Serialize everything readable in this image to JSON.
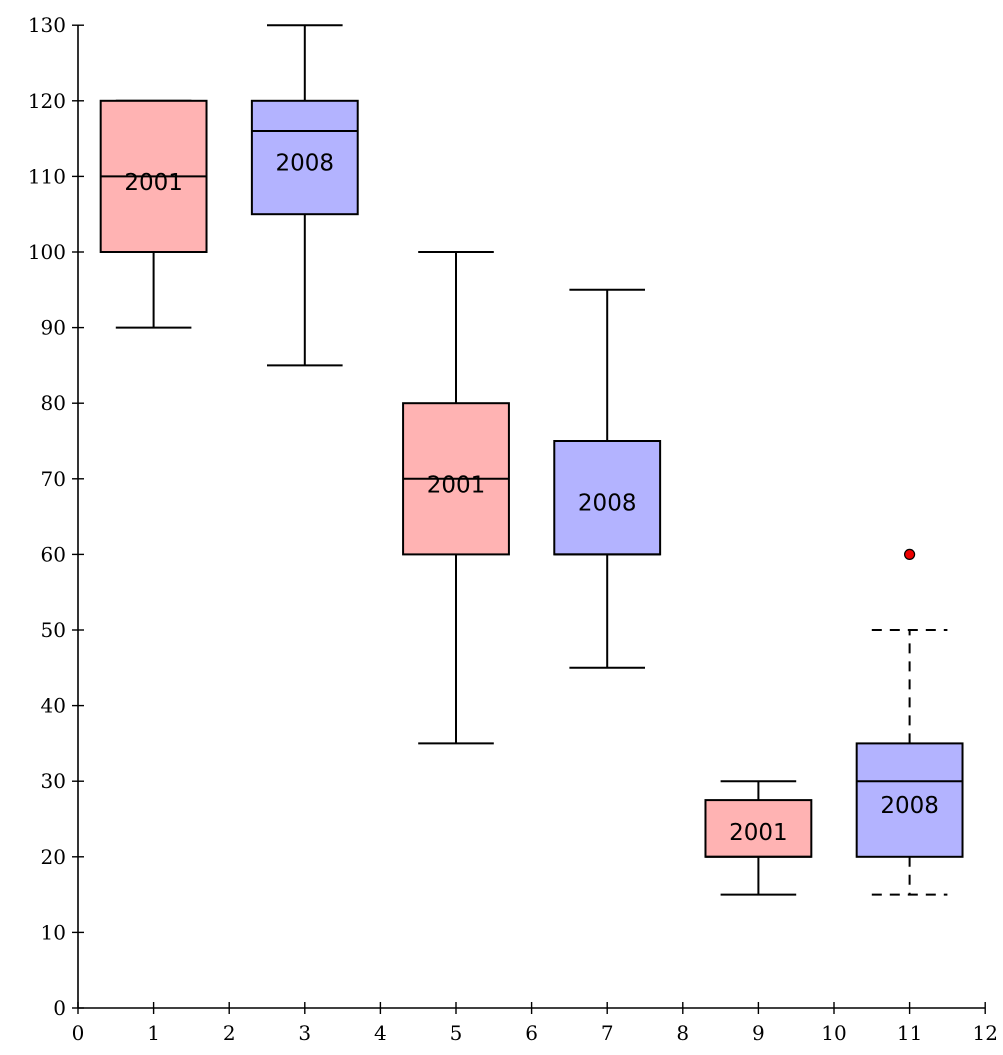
{
  "chart_data": {
    "type": "boxplot",
    "xlim": [
      0,
      12
    ],
    "ylim": [
      0,
      130
    ],
    "x_ticks": [
      "0",
      "1",
      "2",
      "3",
      "4",
      "5",
      "6",
      "7",
      "8",
      "9",
      "10",
      "11",
      "12"
    ],
    "y_ticks": [
      "0",
      "10",
      "20",
      "30",
      "40",
      "50",
      "60",
      "70",
      "80",
      "90",
      "100",
      "110",
      "120",
      "130"
    ],
    "grid": false,
    "colors": {
      "2001": "#ffb3b3",
      "2008": "#b3b3ff",
      "outlier": "#ee0000",
      "stroke": "#000000"
    },
    "boxes": [
      {
        "x": 1,
        "label": "2001",
        "lower_whisker": 90,
        "q1": 100,
        "median": 110,
        "q3": 120,
        "upper_whisker": 120,
        "whisker_style": "solid",
        "outliers": []
      },
      {
        "x": 3,
        "label": "2008",
        "lower_whisker": 85,
        "q1": 105,
        "median": 116,
        "q3": 120,
        "upper_whisker": 130,
        "whisker_style": "solid",
        "outliers": []
      },
      {
        "x": 5,
        "label": "2001",
        "lower_whisker": 35,
        "q1": 60,
        "median": 70,
        "q3": 80,
        "upper_whisker": 100,
        "whisker_style": "solid",
        "outliers": []
      },
      {
        "x": 7,
        "label": "2008",
        "lower_whisker": 45,
        "q1": 60,
        "median": 60,
        "q3": 75,
        "upper_whisker": 95,
        "whisker_style": "solid",
        "outliers": []
      },
      {
        "x": 9,
        "label": "2001",
        "lower_whisker": 15,
        "q1": 20,
        "median": 20,
        "q3": 27.5,
        "upper_whisker": 30,
        "whisker_style": "solid",
        "outliers": []
      },
      {
        "x": 11,
        "label": "2008",
        "lower_whisker": 15,
        "q1": 20,
        "median": 30,
        "q3": 35,
        "upper_whisker": 50,
        "whisker_style": "dashed",
        "outliers": [
          60
        ]
      }
    ]
  }
}
